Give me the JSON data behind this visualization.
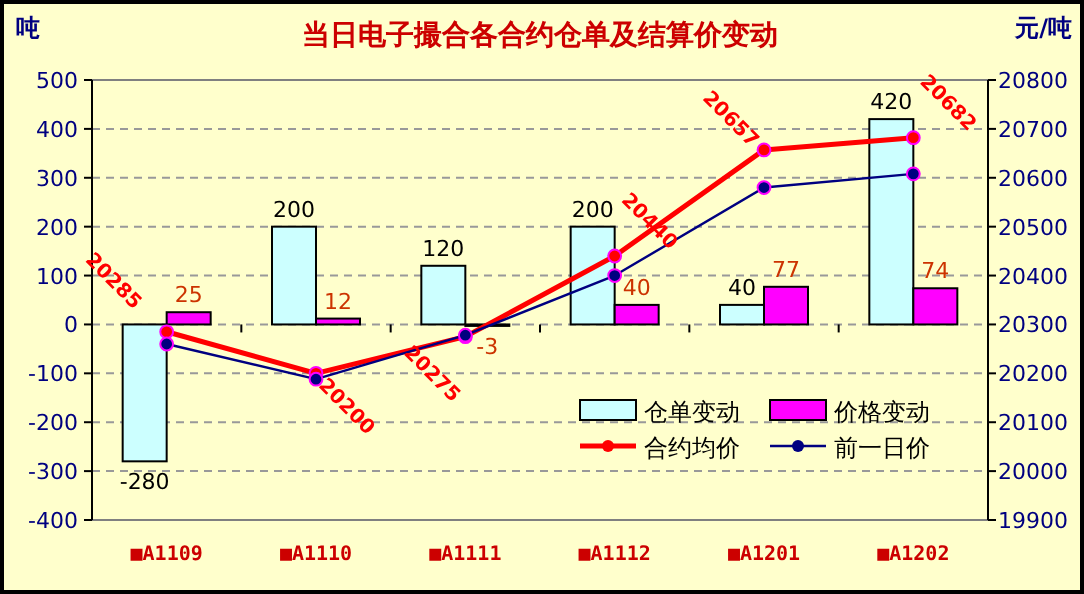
{
  "chart_data": {
    "type": "bar",
    "title": "当日电子撮合各合约仓单及结算价变动",
    "ylabel": "吨",
    "y2label": "元/吨",
    "categories": [
      "■A1109",
      "■A1110",
      "■A1111",
      "■A1112",
      "■A1201",
      "■A1202"
    ],
    "series": [
      {
        "name": "仓单变动",
        "color": "#ccffff",
        "values": [
          -280,
          200,
          120,
          200,
          40,
          420
        ],
        "value_labels": [
          "-280",
          "200",
          "120",
          "200",
          "40",
          "420"
        ]
      },
      {
        "name": "价格变动",
        "color": "#ff00ff",
        "values": [
          25,
          12,
          -3,
          40,
          77,
          74
        ],
        "value_labels": [
          "25",
          "12",
          "-3",
          "40",
          "77",
          "74"
        ]
      },
      {
        "name": "合约均价",
        "type": "line",
        "axis": "y2",
        "color": "#ff0000",
        "marker": "circle",
        "values": [
          20285,
          20200,
          20275,
          20440,
          20657,
          20682
        ],
        "value_labels": [
          "20285",
          "20200",
          "20275",
          "20440",
          "20657",
          "20682"
        ]
      },
      {
        "name": "前一日价",
        "type": "line",
        "axis": "y2",
        "color": "#000080",
        "marker": "circle",
        "values": [
          20260,
          20188,
          20278,
          20400,
          20580,
          20608
        ]
      }
    ],
    "ylim": [
      -400,
      500
    ],
    "yticks": [
      -400,
      -300,
      -200,
      -100,
      0,
      100,
      200,
      300,
      400,
      500
    ],
    "y2lim": [
      19900,
      20800
    ],
    "y2ticks": [
      19900,
      20000,
      20100,
      20200,
      20300,
      20400,
      20500,
      20600,
      20700,
      20800
    ],
    "grid": "y",
    "legend": "bottom right"
  }
}
